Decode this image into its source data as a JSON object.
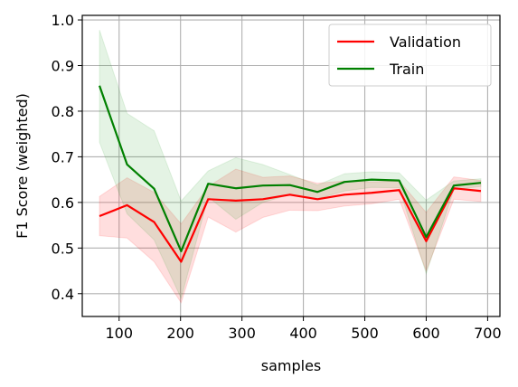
{
  "chart_data": {
    "type": "line",
    "xlabel": "samples",
    "ylabel": "F1 Score (weighted)",
    "xlim": [
      40,
      720
    ],
    "ylim": [
      0.35,
      1.01
    ],
    "xticks": [
      100,
      200,
      300,
      400,
      500,
      600,
      700
    ],
    "yticks": [
      0.4,
      0.5,
      0.6,
      0.7,
      0.8,
      0.9,
      1.0
    ],
    "xtick_labels": [
      "100",
      "200",
      "300",
      "400",
      "500",
      "600",
      "700"
    ],
    "ytick_labels": [
      "0.4",
      "0.5",
      "0.6",
      "0.7",
      "0.8",
      "0.9",
      "1.0"
    ],
    "grid": true,
    "legend_position": "top-right",
    "x": [
      68,
      113,
      157,
      201,
      245,
      290,
      334,
      378,
      423,
      467,
      511,
      556,
      600,
      645,
      689
    ],
    "series": [
      {
        "name": "Validation",
        "color": "#ff0000",
        "band_color": "#ff0000",
        "values": [
          0.57,
          0.594,
          0.557,
          0.47,
          0.607,
          0.604,
          0.607,
          0.617,
          0.607,
          0.617,
          0.621,
          0.627,
          0.515,
          0.631,
          0.625
        ],
        "lower": [
          0.527,
          0.522,
          0.47,
          0.38,
          0.568,
          0.535,
          0.567,
          0.583,
          0.582,
          0.592,
          0.597,
          0.607,
          0.45,
          0.607,
          0.602
        ],
        "upper": [
          0.613,
          0.654,
          0.622,
          0.553,
          0.635,
          0.673,
          0.655,
          0.658,
          0.642,
          0.647,
          0.645,
          0.647,
          0.578,
          0.656,
          0.648
        ]
      },
      {
        "name": "Train",
        "color": "#008000",
        "band_color": "#2ca02c",
        "values": [
          0.856,
          0.683,
          0.63,
          0.493,
          0.641,
          0.631,
          0.637,
          0.638,
          0.623,
          0.645,
          0.65,
          0.648,
          0.524,
          0.637,
          0.643
        ],
        "lower": [
          0.732,
          0.575,
          0.518,
          0.39,
          0.612,
          0.563,
          0.6,
          0.617,
          0.608,
          0.625,
          0.633,
          0.632,
          0.444,
          0.628,
          0.635
        ],
        "upper": [
          0.978,
          0.795,
          0.757,
          0.603,
          0.669,
          0.698,
          0.683,
          0.661,
          0.638,
          0.663,
          0.667,
          0.665,
          0.605,
          0.647,
          0.652
        ]
      }
    ]
  }
}
